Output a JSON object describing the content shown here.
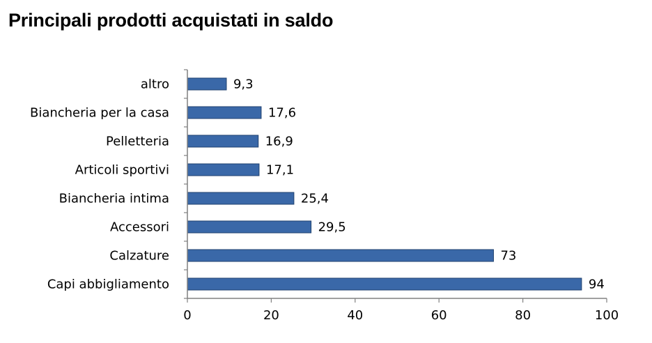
{
  "chart_data": {
    "type": "bar",
    "orientation": "horizontal",
    "title": "Principali prodotti acquistati in saldo",
    "categories": [
      "altro",
      "Biancheria per la casa",
      "Pelletteria",
      "Articoli sportivi",
      "Biancheria intima",
      "Accessori",
      "Calzature",
      "Capi abbigliamento"
    ],
    "values": [
      9.3,
      17.6,
      16.9,
      17.1,
      25.4,
      29.5,
      73,
      94
    ],
    "value_labels": [
      "9,3",
      "17,6",
      "16,9",
      "17,1",
      "25,4",
      "29,5",
      "73",
      "94"
    ],
    "xlim": [
      0,
      100
    ],
    "xticks": [
      0,
      20,
      40,
      60,
      80,
      100
    ],
    "xtick_labels": [
      "0",
      "20",
      "40",
      "60",
      "80",
      "100"
    ],
    "bar_color": "#3a68a8",
    "bar_edge_color": "#20426f",
    "grid": false,
    "legend": "none"
  }
}
